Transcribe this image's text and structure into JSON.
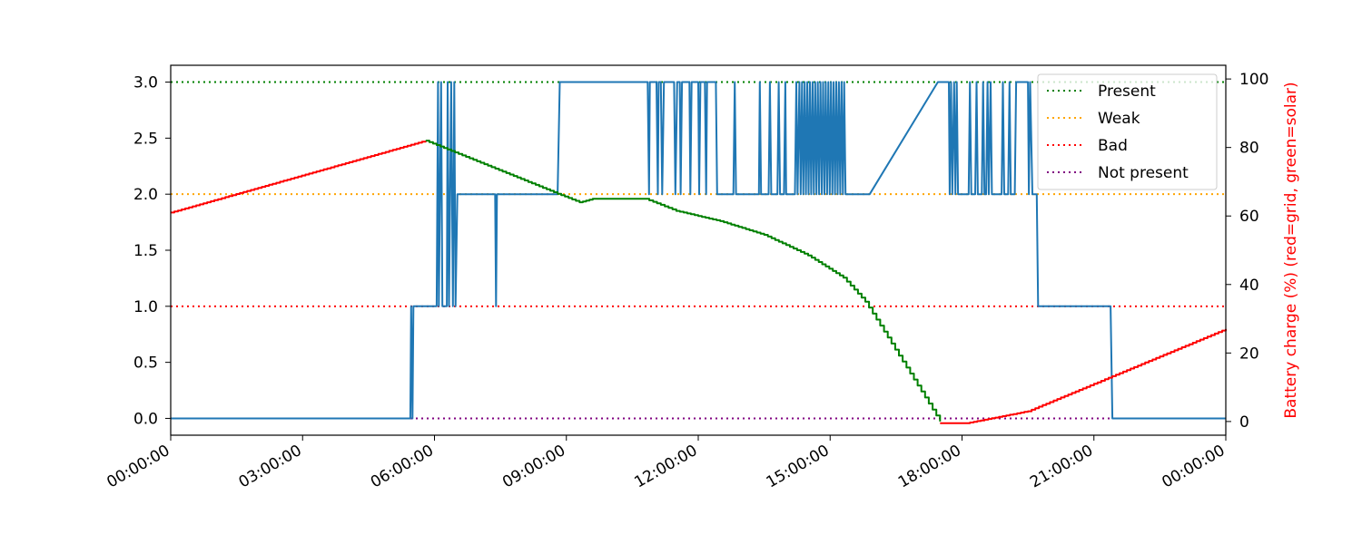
{
  "chart_data": {
    "type": "line",
    "title": "",
    "xlabel": "",
    "ylabel_left": "",
    "ylabel_right": "Battery charge (%) (red=grid, green=solar)",
    "x_ticks": [
      "00:00:00",
      "03:00:00",
      "06:00:00",
      "09:00:00",
      "12:00:00",
      "15:00:00",
      "18:00:00",
      "21:00:00",
      "00:00:00"
    ],
    "xlim_hours": [
      0,
      24
    ],
    "ylim_left": [
      -0.15,
      3.15
    ],
    "ylim_right": [
      -4,
      104
    ],
    "y_left_ticks": [
      "0.0",
      "0.5",
      "1.0",
      "1.5",
      "2.0",
      "2.5",
      "3.0"
    ],
    "y_right_ticks": [
      "0",
      "20",
      "40",
      "60",
      "80",
      "100"
    ],
    "grid": false,
    "legend_position": "top-right",
    "legend": [
      {
        "label": "Present",
        "color": "#008000",
        "value": 3
      },
      {
        "label": "Weak",
        "color": "#ffa500",
        "value": 2
      },
      {
        "label": "Bad",
        "color": "#ff0000",
        "value": 1
      },
      {
        "label": "Not present",
        "color": "#800080",
        "value": 0
      }
    ],
    "right_axis_color": "#ff0000",
    "series": [
      {
        "axis": "left",
        "color": "#1f77b4",
        "step": false,
        "points": [
          [
            0,
            0
          ],
          [
            5.45,
            0
          ],
          [
            5.47,
            1
          ],
          [
            5.5,
            0
          ],
          [
            5.52,
            1
          ],
          [
            6.05,
            1
          ],
          [
            6.08,
            3
          ],
          [
            6.1,
            1
          ],
          [
            6.15,
            3
          ],
          [
            6.18,
            1
          ],
          [
            6.28,
            1
          ],
          [
            6.3,
            3
          ],
          [
            6.33,
            1
          ],
          [
            6.38,
            3
          ],
          [
            6.42,
            1
          ],
          [
            6.45,
            3
          ],
          [
            6.48,
            1
          ],
          [
            6.52,
            2
          ],
          [
            7.38,
            2
          ],
          [
            7.4,
            1
          ],
          [
            7.42,
            2
          ],
          [
            8.8,
            2
          ],
          [
            8.85,
            3
          ],
          [
            10.85,
            3
          ],
          [
            10.88,
            2
          ],
          [
            10.9,
            3
          ],
          [
            11.05,
            3
          ],
          [
            11.08,
            2
          ],
          [
            11.1,
            3
          ],
          [
            11.15,
            3
          ],
          [
            11.18,
            2
          ],
          [
            11.22,
            3
          ],
          [
            11.45,
            3
          ],
          [
            11.48,
            2
          ],
          [
            11.52,
            3
          ],
          [
            11.58,
            3
          ],
          [
            11.6,
            2
          ],
          [
            11.63,
            3
          ],
          [
            11.8,
            3
          ],
          [
            11.82,
            2
          ],
          [
            11.85,
            3
          ],
          [
            12.0,
            3
          ],
          [
            12.02,
            2
          ],
          [
            12.05,
            3
          ],
          [
            12.15,
            3
          ],
          [
            12.18,
            2
          ],
          [
            12.2,
            3
          ],
          [
            12.4,
            3
          ],
          [
            12.43,
            2
          ],
          [
            12.8,
            2
          ],
          [
            12.83,
            3
          ],
          [
            12.86,
            2
          ],
          [
            13.38,
            2
          ],
          [
            13.4,
            3
          ],
          [
            13.43,
            2
          ],
          [
            13.6,
            2
          ],
          [
            13.63,
            3
          ],
          [
            13.66,
            2
          ],
          [
            13.8,
            2
          ],
          [
            13.83,
            3
          ],
          [
            13.86,
            2
          ],
          [
            13.95,
            2
          ],
          [
            13.98,
            3
          ],
          [
            14.0,
            2
          ],
          [
            14.2,
            2
          ],
          [
            14.23,
            3
          ],
          [
            14.26,
            2
          ],
          [
            14.3,
            3
          ],
          [
            14.33,
            2
          ],
          [
            14.36,
            3
          ],
          [
            14.39,
            2
          ],
          [
            14.42,
            3
          ],
          [
            14.45,
            2
          ],
          [
            14.48,
            3
          ],
          [
            14.51,
            2
          ],
          [
            14.54,
            3
          ],
          [
            14.57,
            2
          ],
          [
            14.6,
            3
          ],
          [
            14.63,
            2
          ],
          [
            14.66,
            3
          ],
          [
            14.69,
            2
          ],
          [
            14.72,
            3
          ],
          [
            14.75,
            2
          ],
          [
            14.78,
            3
          ],
          [
            14.81,
            2
          ],
          [
            14.84,
            3
          ],
          [
            14.87,
            2
          ],
          [
            14.9,
            3
          ],
          [
            14.93,
            2
          ],
          [
            14.96,
            3
          ],
          [
            14.99,
            2
          ],
          [
            15.02,
            3
          ],
          [
            15.05,
            2
          ],
          [
            15.08,
            3
          ],
          [
            15.11,
            2
          ],
          [
            15.14,
            3
          ],
          [
            15.17,
            2
          ],
          [
            15.2,
            3
          ],
          [
            15.23,
            2
          ],
          [
            15.26,
            3
          ],
          [
            15.29,
            2
          ],
          [
            15.32,
            3
          ],
          [
            15.35,
            2
          ],
          [
            15.9,
            2
          ],
          [
            17.45,
            3
          ],
          [
            17.7,
            3
          ],
          [
            17.72,
            2
          ],
          [
            17.75,
            3
          ],
          [
            17.78,
            2
          ],
          [
            17.82,
            3
          ],
          [
            17.85,
            2
          ],
          [
            17.88,
            3
          ],
          [
            17.91,
            2
          ],
          [
            18.15,
            2
          ],
          [
            18.18,
            3
          ],
          [
            18.21,
            2
          ],
          [
            18.3,
            2
          ],
          [
            18.33,
            3
          ],
          [
            18.36,
            2
          ],
          [
            18.45,
            2
          ],
          [
            18.48,
            3
          ],
          [
            18.51,
            2
          ],
          [
            18.55,
            2
          ],
          [
            18.58,
            3
          ],
          [
            18.61,
            2
          ],
          [
            18.65,
            3
          ],
          [
            18.68,
            2
          ],
          [
            18.9,
            2
          ],
          [
            18.93,
            3
          ],
          [
            18.96,
            2
          ],
          [
            19.05,
            2
          ],
          [
            19.08,
            3
          ],
          [
            19.11,
            2
          ],
          [
            19.2,
            2
          ],
          [
            19.23,
            3
          ],
          [
            19.5,
            3
          ],
          [
            19.52,
            2
          ],
          [
            19.55,
            3
          ],
          [
            19.6,
            2
          ],
          [
            19.7,
            2
          ],
          [
            19.73,
            1
          ],
          [
            21.38,
            1
          ],
          [
            21.42,
            0
          ],
          [
            24,
            0
          ]
        ]
      },
      {
        "axis": "right",
        "color": "#ff0000",
        "step": true,
        "points": [
          [
            0,
            61
          ],
          [
            5.8,
            82
          ]
        ]
      },
      {
        "axis": "right",
        "color": "#008000",
        "step": true,
        "points": [
          [
            5.8,
            82
          ],
          [
            8.8,
            66.5
          ],
          [
            9.3,
            64
          ],
          [
            9.6,
            65
          ],
          [
            10.8,
            65
          ],
          [
            11.5,
            61.5
          ],
          [
            12.5,
            58.5
          ],
          [
            13.5,
            54.5
          ],
          [
            14.5,
            48.5
          ],
          [
            15.3,
            42
          ],
          [
            15.8,
            35
          ],
          [
            17.5,
            0
          ]
        ]
      },
      {
        "axis": "right",
        "color": "#ff0000",
        "step": true,
        "points": [
          [
            17.5,
            -0.5
          ],
          [
            18.1,
            -0.5
          ],
          [
            19.5,
            3
          ],
          [
            24,
            27
          ]
        ]
      }
    ]
  }
}
